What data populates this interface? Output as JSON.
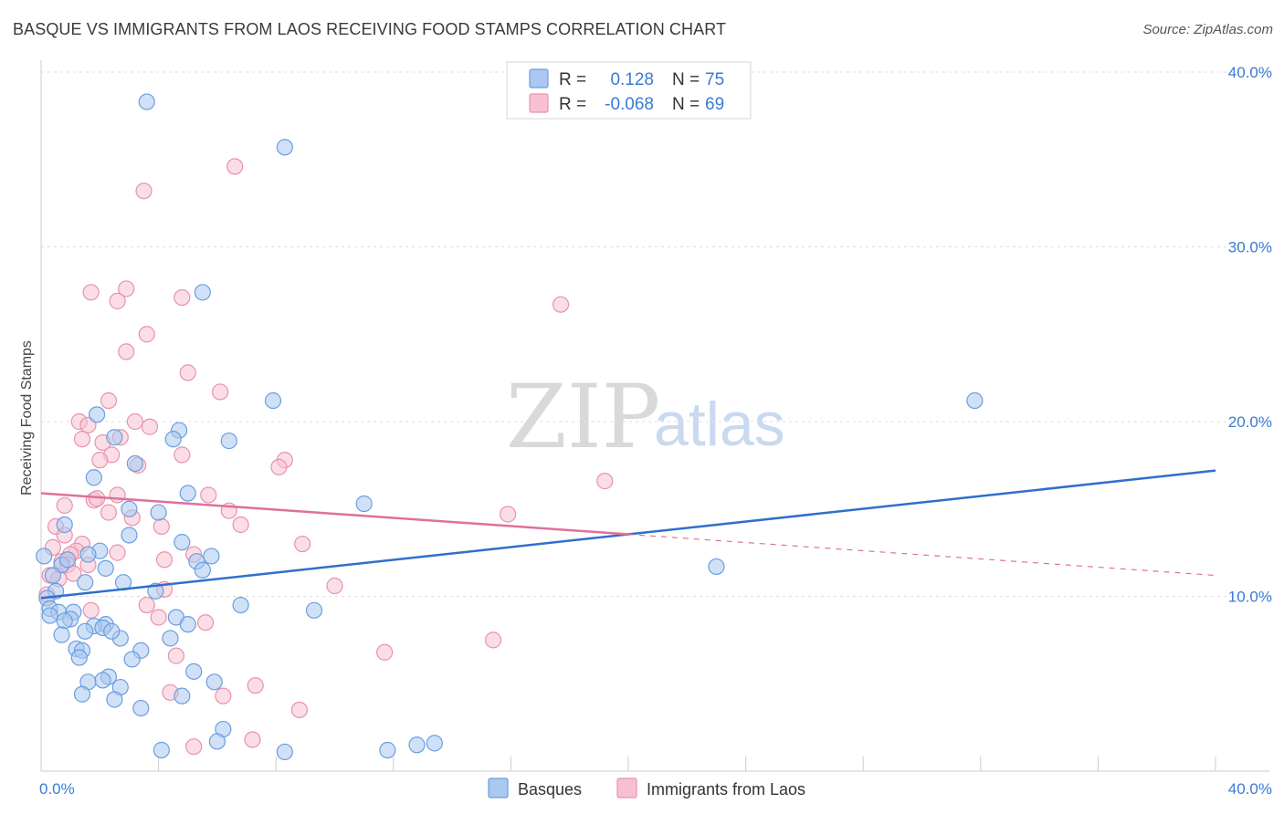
{
  "header": {
    "title": "BASQUE VS IMMIGRANTS FROM LAOS RECEIVING FOOD STAMPS CORRELATION CHART",
    "source": "Source: ZipAtlas.com"
  },
  "watermark": {
    "zip": "ZIP",
    "atlas": "atlas"
  },
  "colors": {
    "basques_fill": "#aac8f0",
    "basques_stroke": "#6a9ee0",
    "basques_line": "#2f6fcc",
    "laos_fill": "#f7c1d2",
    "laos_stroke": "#e892ad",
    "laos_line": "#e0709a",
    "axis_text": "#3a7bd5",
    "grid": "#dddddd"
  },
  "legend": {
    "rows": [
      {
        "r_label": "R =",
        "r_value": "0.128",
        "n_label": "N =",
        "n_value": "75"
      },
      {
        "r_label": "R =",
        "r_value": "-0.068",
        "n_label": "N =",
        "n_value": "69"
      }
    ]
  },
  "chart_data": {
    "type": "scatter",
    "title": "BASQUE VS IMMIGRANTS FROM LAOS RECEIVING FOOD STAMPS CORRELATION CHART",
    "xlabel": "",
    "ylabel": "Receiving Food Stamps",
    "xlim": [
      0,
      40
    ],
    "ylim": [
      0,
      40
    ],
    "x_tick_labels": [
      "0.0%",
      "40.0%"
    ],
    "y_tick_labels": [
      "10.0%",
      "20.0%",
      "30.0%",
      "40.0%"
    ],
    "y_ticks": [
      10,
      20,
      30,
      40
    ],
    "grid": true,
    "legend_position": "top-center",
    "series": [
      {
        "name": "Basques",
        "r": 0.128,
        "n": 75,
        "trend": {
          "x": [
            0,
            40
          ],
          "y": [
            9.9,
            17.2
          ]
        },
        "points": [
          [
            3.6,
            38.3
          ],
          [
            8.3,
            35.7
          ],
          [
            5.5,
            27.4
          ],
          [
            7.9,
            21.2
          ],
          [
            31.8,
            21.2
          ],
          [
            1.9,
            20.4
          ],
          [
            4.7,
            19.5
          ],
          [
            4.5,
            19.0
          ],
          [
            6.4,
            18.9
          ],
          [
            2.5,
            19.1
          ],
          [
            3.2,
            17.6
          ],
          [
            1.8,
            16.8
          ],
          [
            5.0,
            15.9
          ],
          [
            11.0,
            15.3
          ],
          [
            3.0,
            15.0
          ],
          [
            4.0,
            14.8
          ],
          [
            0.8,
            14.1
          ],
          [
            3.0,
            13.5
          ],
          [
            4.8,
            13.1
          ],
          [
            2.0,
            12.6
          ],
          [
            1.6,
            12.4
          ],
          [
            5.8,
            12.3
          ],
          [
            5.3,
            12.0
          ],
          [
            0.7,
            11.8
          ],
          [
            2.2,
            11.6
          ],
          [
            5.5,
            11.5
          ],
          [
            23.0,
            11.7
          ],
          [
            1.5,
            10.8
          ],
          [
            2.8,
            10.8
          ],
          [
            0.5,
            10.3
          ],
          [
            3.9,
            10.3
          ],
          [
            0.2,
            9.9
          ],
          [
            0.3,
            9.3
          ],
          [
            0.6,
            9.1
          ],
          [
            9.3,
            9.2
          ],
          [
            1.1,
            9.1
          ],
          [
            0.3,
            8.9
          ],
          [
            1.0,
            8.7
          ],
          [
            0.8,
            8.6
          ],
          [
            4.6,
            8.8
          ],
          [
            2.2,
            8.4
          ],
          [
            5.0,
            8.4
          ],
          [
            1.8,
            8.3
          ],
          [
            2.1,
            8.2
          ],
          [
            0.7,
            7.8
          ],
          [
            4.4,
            7.6
          ],
          [
            2.7,
            7.6
          ],
          [
            1.2,
            7.0
          ],
          [
            1.4,
            6.9
          ],
          [
            3.4,
            6.9
          ],
          [
            1.3,
            6.5
          ],
          [
            3.1,
            6.4
          ],
          [
            5.2,
            5.7
          ],
          [
            2.3,
            5.4
          ],
          [
            2.1,
            5.2
          ],
          [
            1.6,
            5.1
          ],
          [
            5.9,
            5.1
          ],
          [
            2.7,
            4.8
          ],
          [
            1.4,
            4.4
          ],
          [
            4.8,
            4.3
          ],
          [
            2.5,
            4.1
          ],
          [
            3.4,
            3.6
          ],
          [
            6.2,
            2.4
          ],
          [
            6.0,
            1.7
          ],
          [
            12.8,
            1.5
          ],
          [
            13.4,
            1.6
          ],
          [
            4.1,
            1.2
          ],
          [
            8.3,
            1.1
          ],
          [
            11.8,
            1.2
          ],
          [
            0.1,
            12.3
          ],
          [
            0.4,
            11.2
          ],
          [
            1.5,
            8.0
          ],
          [
            2.4,
            8.0
          ],
          [
            0.9,
            12.1
          ],
          [
            6.8,
            9.5
          ]
        ]
      },
      {
        "name": "Immigrants from Laos",
        "r": -0.068,
        "n": 69,
        "trend": {
          "x": [
            0,
            40
          ],
          "y": [
            15.9,
            11.2
          ]
        },
        "trend_solid_until": 20,
        "points": [
          [
            6.6,
            34.6
          ],
          [
            3.5,
            33.2
          ],
          [
            2.9,
            27.6
          ],
          [
            1.7,
            27.4
          ],
          [
            4.8,
            27.1
          ],
          [
            2.6,
            26.9
          ],
          [
            17.7,
            26.7
          ],
          [
            3.6,
            25.0
          ],
          [
            2.9,
            24.0
          ],
          [
            5.0,
            22.8
          ],
          [
            6.1,
            21.7
          ],
          [
            2.3,
            21.2
          ],
          [
            1.3,
            20.0
          ],
          [
            3.2,
            20.0
          ],
          [
            1.6,
            19.8
          ],
          [
            3.7,
            19.7
          ],
          [
            1.4,
            19.0
          ],
          [
            2.7,
            19.1
          ],
          [
            2.1,
            18.8
          ],
          [
            2.4,
            18.1
          ],
          [
            4.8,
            18.1
          ],
          [
            8.3,
            17.8
          ],
          [
            2.0,
            17.8
          ],
          [
            3.3,
            17.5
          ],
          [
            8.1,
            17.4
          ],
          [
            19.2,
            16.6
          ],
          [
            5.7,
            15.8
          ],
          [
            2.6,
            15.8
          ],
          [
            1.8,
            15.5
          ],
          [
            0.8,
            15.2
          ],
          [
            6.4,
            14.9
          ],
          [
            2.3,
            14.8
          ],
          [
            3.1,
            14.5
          ],
          [
            15.9,
            14.7
          ],
          [
            4.1,
            14.0
          ],
          [
            6.8,
            14.1
          ],
          [
            0.5,
            14.0
          ],
          [
            0.8,
            13.5
          ],
          [
            1.4,
            13.0
          ],
          [
            8.9,
            13.0
          ],
          [
            1.2,
            12.6
          ],
          [
            1.0,
            12.4
          ],
          [
            2.6,
            12.5
          ],
          [
            5.2,
            12.4
          ],
          [
            4.2,
            12.1
          ],
          [
            0.7,
            12.0
          ],
          [
            0.9,
            11.8
          ],
          [
            1.1,
            11.3
          ],
          [
            0.3,
            11.2
          ],
          [
            0.6,
            11.0
          ],
          [
            10.0,
            10.6
          ],
          [
            4.2,
            10.4
          ],
          [
            0.2,
            10.1
          ],
          [
            3.6,
            9.5
          ],
          [
            1.7,
            9.2
          ],
          [
            4.0,
            8.8
          ],
          [
            5.6,
            8.5
          ],
          [
            15.4,
            7.5
          ],
          [
            11.7,
            6.8
          ],
          [
            4.6,
            6.6
          ],
          [
            7.3,
            4.9
          ],
          [
            4.4,
            4.5
          ],
          [
            6.2,
            4.3
          ],
          [
            8.8,
            3.5
          ],
          [
            7.2,
            1.8
          ],
          [
            5.2,
            1.4
          ],
          [
            1.9,
            15.6
          ],
          [
            0.4,
            12.8
          ],
          [
            1.6,
            11.8
          ]
        ]
      }
    ]
  },
  "bottom_legend": [
    {
      "label": "Basques"
    },
    {
      "label": "Immigrants from Laos"
    }
  ]
}
